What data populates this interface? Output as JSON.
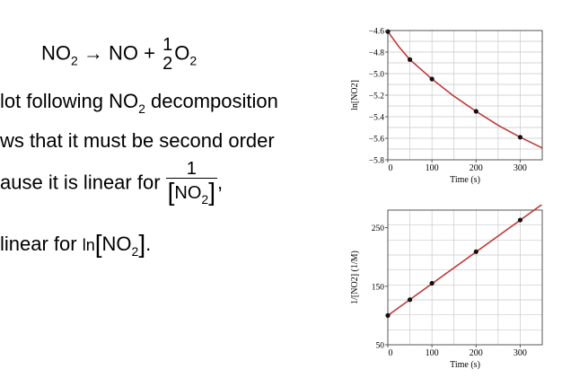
{
  "equation": {
    "reactant": "NO",
    "reactant_sub": "2",
    "arrow": "→",
    "product1": "NO",
    "plus": "+",
    "coef_num": "1",
    "coef_den": "2",
    "product2": "O",
    "product2_sub": "2"
  },
  "text": {
    "line1_a": "lot following ",
    "line1_species": "NO",
    "line1_sub": "2",
    "line1_b": " decomposition",
    "line2": "ws that it must be second order",
    "line3_a": "ause it is linear for ",
    "line3_num": "1",
    "line3_species": "NO",
    "line3_sub": "2",
    "line3_comma": ",",
    "line4_a": " linear for ",
    "line4_ln": "ln",
    "line4_species": "NO",
    "line4_sub": "2",
    "line4_period": "."
  },
  "chart_data": [
    {
      "type": "scatter",
      "xlabel": "Time (s)",
      "ylabel": "ln[NO2]",
      "xlim": [
        0,
        350
      ],
      "ylim": [
        -5.8,
        -4.6
      ],
      "xticks": [
        0,
        100,
        200,
        300
      ],
      "yticks": [
        -5.8,
        -5.6,
        -5.4,
        -5.2,
        -5.0,
        -4.8,
        -4.6
      ],
      "xtick_labels": [
        "0",
        "100",
        "200",
        "300"
      ],
      "ytick_labels": [
        "−5.8",
        "−5.6",
        "−5.4",
        "−5.2",
        "−5.0",
        "−4.8",
        "−4.6"
      ],
      "grid": true,
      "points": {
        "x": [
          0,
          50,
          100,
          200,
          300
        ],
        "y": [
          -4.61,
          -4.87,
          -5.05,
          -5.35,
          -5.59
        ]
      },
      "curve": {
        "x": [
          0,
          25,
          50,
          75,
          100,
          150,
          200,
          250,
          300,
          350
        ],
        "y": [
          -4.61,
          -4.75,
          -4.87,
          -4.96,
          -5.05,
          -5.21,
          -5.35,
          -5.48,
          -5.59,
          -5.69
        ]
      },
      "colors": {
        "curve": "#c0393b",
        "points": "#111111",
        "grid": "#c9c9c9"
      }
    },
    {
      "type": "scatter",
      "xlabel": "Time (s)",
      "ylabel": "1/[NO2] (1/M)",
      "xlim": [
        0,
        350
      ],
      "ylim": [
        50,
        280
      ],
      "xticks": [
        0,
        100,
        200,
        300
      ],
      "yticks": [
        50,
        150,
        250
      ],
      "xtick_labels": [
        "0",
        "100",
        "200",
        "300"
      ],
      "ytick_labels": [
        "50",
        "150",
        "250"
      ],
      "grid": true,
      "points": {
        "x": [
          0,
          50,
          100,
          200,
          300
        ],
        "y": [
          100,
          127,
          155,
          209,
          263
        ]
      },
      "curve": {
        "x": [
          0,
          350
        ],
        "y": [
          100,
          290
        ]
      },
      "colors": {
        "curve": "#c0393b",
        "points": "#111111",
        "grid": "#c9c9c9"
      }
    }
  ]
}
